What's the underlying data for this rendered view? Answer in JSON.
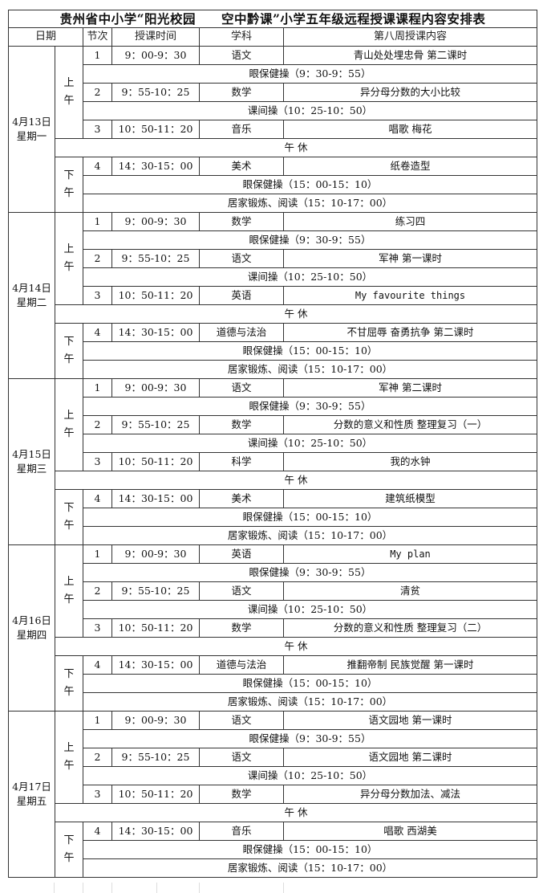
{
  "title": "贵州省中小学“阳光校园　　空中黔课”小学五年级远程授课课程内容安排表",
  "headers": {
    "date": "日期",
    "period": "节次",
    "time": "授课时间",
    "subject": "学科",
    "content": "第八周授课内容"
  },
  "am_label": "上午",
  "pm_label": "下午",
  "days": [
    {
      "date": "4月13日",
      "weekday": "星期一",
      "lessons": [
        {
          "no": "1",
          "time": "9：00-9：30",
          "subject": "语文",
          "content": "青山处处埋忠骨 第二课时"
        },
        {
          "no": "2",
          "time": "9：55-10：25",
          "subject": "数学",
          "content": "异分母分数的大小比较"
        },
        {
          "no": "3",
          "time": "10：50-11：20",
          "subject": "音乐",
          "content": "唱歌 梅花"
        },
        {
          "no": "4",
          "time": "14：30-15：00",
          "subject": "美术",
          "content": "纸卷造型"
        }
      ],
      "eye_am": "眼保健操（9：30-9：55）",
      "break": "课间操（10：25-10：50）",
      "lunch": "午 休",
      "eye_pm": "眼保健操（15：00-15：10）",
      "home": "居家锻炼、阅读（15：10-17：00）"
    },
    {
      "date": "4月14日",
      "weekday": "星期二",
      "lessons": [
        {
          "no": "1",
          "time": "9：00-9：30",
          "subject": "数学",
          "content": "练习四"
        },
        {
          "no": "2",
          "time": "9：55-10：25",
          "subject": "语文",
          "content": "军神 第一课时"
        },
        {
          "no": "3",
          "time": "10：50-11：20",
          "subject": "英语",
          "content": "My favourite things"
        },
        {
          "no": "4",
          "time": "14：30-15：00",
          "subject": "道德与法治",
          "content": "不甘屈辱 奋勇抗争 第二课时"
        }
      ],
      "eye_am": "眼保健操（9：30-9：55）",
      "break": "课间操（10：25-10：50）",
      "lunch": "午 休",
      "eye_pm": "眼保健操（15：00-15：10）",
      "home": "居家锻炼、阅读（15：10-17：00）"
    },
    {
      "date": "4月15日",
      "weekday": "星期三",
      "lessons": [
        {
          "no": "1",
          "time": "9：00-9：30",
          "subject": "语文",
          "content": "军神 第二课时"
        },
        {
          "no": "2",
          "time": "9：55-10：25",
          "subject": "数学",
          "content": "分数的意义和性质 整理复习（一）"
        },
        {
          "no": "3",
          "time": "10：50-11：20",
          "subject": "科学",
          "content": "我的水钟"
        },
        {
          "no": "4",
          "time": "14：30-15：00",
          "subject": "美术",
          "content": "建筑纸模型"
        }
      ],
      "eye_am": "眼保健操（9：30-9：55）",
      "break": "课间操（10：25-10：50）",
      "lunch": "午 休",
      "eye_pm": "眼保健操（15：00-15：10）",
      "home": "居家锻炼、阅读（15：10-17：00）"
    },
    {
      "date": "4月16日",
      "weekday": "星期四",
      "lessons": [
        {
          "no": "1",
          "time": "9：00-9：30",
          "subject": "英语",
          "content": "My plan"
        },
        {
          "no": "2",
          "time": "9：55-10：25",
          "subject": "语文",
          "content": "清贫"
        },
        {
          "no": "3",
          "time": "10：50-11：20",
          "subject": "数学",
          "content": "分数的意义和性质 整理复习（二）"
        },
        {
          "no": "4",
          "time": "14：30-15：00",
          "subject": "道德与法治",
          "content": "推翻帝制 民族觉醒 第一课时"
        }
      ],
      "eye_am": "眼保健操（9：30-9：55）",
      "break": "课间操（10：25-10：50）",
      "lunch": "午 休",
      "eye_pm": "眼保健操（15：00-15：10）",
      "home": "居家锻炼、阅读（15：10-17：00）"
    },
    {
      "date": "4月17日",
      "weekday": "星期五",
      "lessons": [
        {
          "no": "1",
          "time": "9：00-9：30",
          "subject": "语文",
          "content": "语文园地 第一课时"
        },
        {
          "no": "2",
          "time": "9：55-10：25",
          "subject": "语文",
          "content": "语文园地 第二课时"
        },
        {
          "no": "3",
          "time": "10：50-11：20",
          "subject": "数学",
          "content": "异分母分数加法、减法"
        },
        {
          "no": "4",
          "time": "14：30-15：00",
          "subject": "音乐",
          "content": "唱歌 西湖美"
        }
      ],
      "eye_am": "眼保健操（9：30-9：55）",
      "break": "课间操（10：25-10：50）",
      "lunch": "午 休",
      "eye_pm": "眼保健操（15：00-15：10）",
      "home": "居家锻炼、阅读（15：10-17：00）"
    }
  ]
}
